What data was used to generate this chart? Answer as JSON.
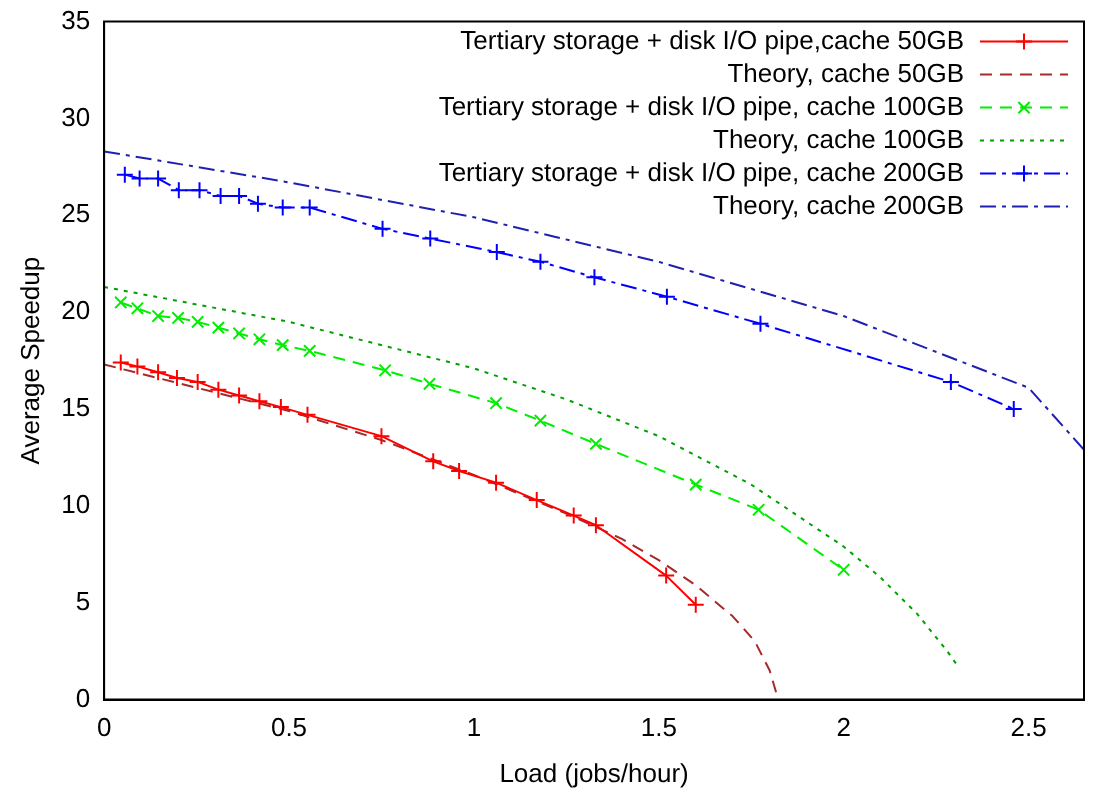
{
  "chart_data": {
    "type": "line",
    "xlabel": "Load (jobs/hour)",
    "ylabel": "Average Speedup",
    "xlim": [
      0,
      2.65
    ],
    "xticks": [
      0,
      0.5,
      1,
      1.5,
      2,
      2.5
    ],
    "ylim": [
      0,
      35
    ],
    "yticks": [
      0,
      5,
      10,
      15,
      20,
      25,
      30,
      35
    ],
    "grid": false,
    "legend": "top right",
    "series": [
      {
        "name": "Tertiary storage + disk I/O pipe,cache 50GB",
        "color": "#ff0000",
        "marker": "cross",
        "line_style": "solid",
        "x": [
          0.045,
          0.09,
          0.146,
          0.197,
          0.253,
          0.309,
          0.365,
          0.42,
          0.478,
          0.55,
          0.75,
          0.89,
          0.96,
          1.06,
          1.17,
          1.27,
          1.33,
          1.52,
          1.6
        ],
        "values": [
          17.4,
          17.2,
          16.9,
          16.6,
          16.4,
          16.0,
          15.7,
          15.4,
          15.1,
          14.7,
          13.6,
          12.3,
          11.8,
          11.2,
          10.3,
          9.5,
          9.0,
          6.4,
          4.9
        ]
      },
      {
        "name": "Theory, cache 50GB",
        "color": "#a52a2a",
        "marker": "none",
        "line_style": "dashed",
        "x": [
          0,
          0.25,
          0.5,
          0.75,
          1,
          1.25,
          1.4,
          1.5,
          1.6,
          1.7,
          1.76,
          1.8,
          1.82
        ],
        "values": [
          17.3,
          16.1,
          14.9,
          13.4,
          11.6,
          9.6,
          8.3,
          7.2,
          5.9,
          4.3,
          3.0,
          1.5,
          0.2
        ]
      },
      {
        "name": "Tertiary storage + disk I/O pipe, cache 100GB",
        "color": "#00ee00",
        "marker": "crossRot",
        "line_style": "dashed",
        "x": [
          0.045,
          0.09,
          0.146,
          0.2,
          0.253,
          0.309,
          0.365,
          0.42,
          0.483,
          0.556,
          0.76,
          0.88,
          1.06,
          1.18,
          1.33,
          1.6,
          1.77,
          2.0
        ],
        "values": [
          20.5,
          20.2,
          19.8,
          19.7,
          19.5,
          19.2,
          18.9,
          18.6,
          18.3,
          18.0,
          17.0,
          16.3,
          15.3,
          14.4,
          13.2,
          11.1,
          9.8,
          6.7
        ]
      },
      {
        "name": "Theory, cache 100GB",
        "color": "#00a000",
        "marker": "none",
        "line_style": "dotted",
        "x": [
          0,
          0.5,
          1,
          1.25,
          1.5,
          1.75,
          2,
          2.1,
          2.2,
          2.28,
          2.31
        ],
        "values": [
          21.3,
          19.5,
          17.1,
          15.5,
          13.6,
          11.1,
          7.9,
          6.3,
          4.4,
          2.5,
          1.7
        ]
      },
      {
        "name": "Tertiary storage + disk I/O pipe, cache 200GB",
        "color": "#0000ff",
        "marker": "cross",
        "line_style": "dashdot",
        "x": [
          0.056,
          0.096,
          0.146,
          0.202,
          0.258,
          0.315,
          0.365,
          0.416,
          0.483,
          0.556,
          0.753,
          0.882,
          1.062,
          1.18,
          1.326,
          1.522,
          1.775,
          2.29,
          2.46
        ],
        "values": [
          27.1,
          26.9,
          26.9,
          26.3,
          26.3,
          26.0,
          26.0,
          25.6,
          25.4,
          25.4,
          24.3,
          23.8,
          23.1,
          22.6,
          21.8,
          20.8,
          19.4,
          16.4,
          15.0
        ]
      },
      {
        "name": "Theory, cache 200GB",
        "color": "#2020b0",
        "marker": "none",
        "line_style": "dashdot",
        "x": [
          0,
          0.5,
          1,
          1.5,
          2,
          2.5,
          2.65
        ],
        "values": [
          28.3,
          26.7,
          24.9,
          22.6,
          19.8,
          16.1,
          12.9
        ]
      }
    ]
  }
}
